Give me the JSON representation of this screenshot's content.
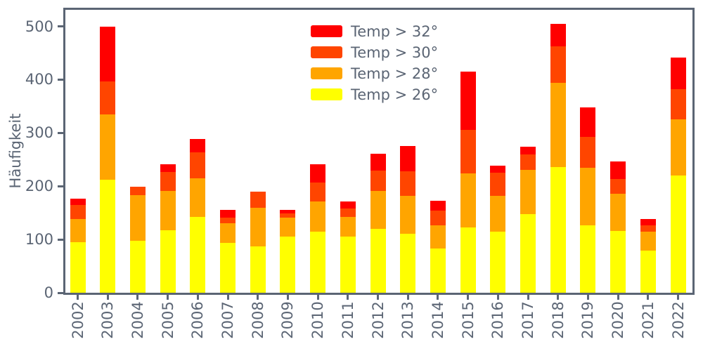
{
  "figure": {
    "ylabel": "Häufigkeit",
    "background_color": "#ffffff",
    "text_color": "#5b6574",
    "spine_color": "#5b6574"
  },
  "legend": {
    "items": [
      {
        "label": "Temp > 32°",
        "color": "#ff0000"
      },
      {
        "label": "Temp > 30°",
        "color": "#ff4500"
      },
      {
        "label": "Temp > 28°",
        "color": "#ffa500"
      },
      {
        "label": "Temp > 26°",
        "color": "#ffff00"
      }
    ]
  },
  "chart_data": {
    "type": "bar",
    "stacked": true,
    "title": "",
    "xlabel": "",
    "ylabel": "Häufigkeit",
    "categories": [
      "2002",
      "2003",
      "2004",
      "2005",
      "2006",
      "2007",
      "2008",
      "2009",
      "2010",
      "2011",
      "2012",
      "2013",
      "2014",
      "2015",
      "2016",
      "2017",
      "2018",
      "2019",
      "2020",
      "2021",
      "2022"
    ],
    "series": [
      {
        "name": "Temp > 26°",
        "color": "#ffff00",
        "values": [
          95,
          212,
          97,
          117,
          142,
          94,
          87,
          105,
          114,
          105,
          120,
          111,
          83,
          122,
          115,
          147,
          236,
          127,
          116,
          79,
          220
        ]
      },
      {
        "name": "Temp > 28°",
        "color": "#ffa500",
        "values": [
          43,
          123,
          86,
          74,
          73,
          37,
          73,
          36,
          57,
          37,
          71,
          71,
          44,
          102,
          67,
          84,
          158,
          108,
          70,
          36,
          106
        ]
      },
      {
        "name": "Temp > 30°",
        "color": "#ff4500",
        "values": [
          27,
          61,
          16,
          36,
          48,
          10,
          30,
          8,
          36,
          16,
          38,
          46,
          27,
          82,
          43,
          29,
          68,
          57,
          27,
          12,
          56
        ]
      },
      {
        "name": "Temp > 32°",
        "color": "#ff0000",
        "values": [
          12,
          103,
          0,
          14,
          26,
          14,
          0,
          6,
          34,
          13,
          32,
          47,
          18,
          109,
          14,
          14,
          43,
          56,
          34,
          11,
          60
        ]
      }
    ],
    "totals": [
      177,
      499,
      199,
      241,
      289,
      155,
      190,
      155,
      241,
      171,
      261,
      275,
      172,
      415,
      239,
      274,
      505,
      348,
      247,
      138,
      442
    ],
    "yticks": [
      0,
      100,
      200,
      300,
      400,
      500
    ],
    "ylim": [
      0,
      531
    ],
    "grid": false,
    "legend_position": "upper-center-inside",
    "x_tick_rotation_deg": 90
  }
}
